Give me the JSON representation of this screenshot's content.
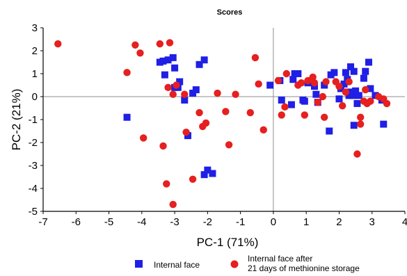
{
  "chart_data": {
    "type": "scatter",
    "title": "Scores",
    "xlabel": "PC-1 (71%)",
    "ylabel": "PC-2 (21%)",
    "xlim": [
      -7,
      4
    ],
    "ylim": [
      -5,
      3
    ],
    "xticks": [
      -7,
      -6,
      -5,
      -4,
      -3,
      -2,
      -1,
      0,
      1,
      2,
      3,
      4
    ],
    "yticks": [
      -5,
      -4,
      -3,
      -2,
      -1,
      0,
      1,
      2,
      3
    ],
    "zero_lines": true,
    "grid": false,
    "legend_position": "bottom",
    "series": [
      {
        "name": "Internal face",
        "marker": "square",
        "color": "#1f1fe6",
        "points": [
          [
            -4.45,
            -0.9
          ],
          [
            -3.45,
            1.5
          ],
          [
            -3.35,
            1.55
          ],
          [
            -3.3,
            0.95
          ],
          [
            -3.2,
            1.6
          ],
          [
            -3.05,
            1.7
          ],
          [
            -3.0,
            1.25
          ],
          [
            -3.0,
            0.4
          ],
          [
            -2.9,
            0.4
          ],
          [
            -2.85,
            0.65
          ],
          [
            -2.7,
            -0.15
          ],
          [
            -2.6,
            -1.7
          ],
          [
            -2.45,
            0.15
          ],
          [
            -2.35,
            0.3
          ],
          [
            -2.25,
            1.4
          ],
          [
            -2.1,
            1.6
          ],
          [
            -2.1,
            -3.4
          ],
          [
            -2.0,
            -3.2
          ],
          [
            -1.85,
            -3.35
          ],
          [
            -0.1,
            0.5
          ],
          [
            0.2,
            0.7
          ],
          [
            0.25,
            -0.15
          ],
          [
            0.55,
            -0.35
          ],
          [
            0.6,
            0.75
          ],
          [
            0.65,
            1.0
          ],
          [
            0.75,
            1.0
          ],
          [
            0.9,
            -0.15
          ],
          [
            0.95,
            -0.2
          ],
          [
            1.05,
            0.6
          ],
          [
            1.25,
            0.45
          ],
          [
            1.3,
            0.1
          ],
          [
            1.35,
            -0.25
          ],
          [
            1.55,
            0.5
          ],
          [
            1.7,
            -1.5
          ],
          [
            1.75,
            0.95
          ],
          [
            1.85,
            1.05
          ],
          [
            2.0,
            -0.1
          ],
          [
            2.05,
            0.35
          ],
          [
            2.15,
            0.55
          ],
          [
            2.2,
            1.05
          ],
          [
            2.25,
            0.75
          ],
          [
            2.3,
            0.2
          ],
          [
            2.3,
            0.05
          ],
          [
            2.35,
            1.3
          ],
          [
            2.4,
            0.05
          ],
          [
            2.45,
            1.1
          ],
          [
            2.45,
            -1.25
          ],
          [
            2.5,
            0.25
          ],
          [
            2.55,
            -0.3
          ],
          [
            2.6,
            0.05
          ],
          [
            2.75,
            0.8
          ],
          [
            2.8,
            1.1
          ],
          [
            2.9,
            1.5
          ],
          [
            2.95,
            0.35
          ],
          [
            3.1,
            0.05
          ],
          [
            3.3,
            -0.15
          ],
          [
            3.35,
            -1.2
          ]
        ]
      },
      {
        "name": "Internal face after 21 days of methionine storage",
        "legend_lines": [
          "Internal face after",
          "21 days of methionine storage"
        ],
        "marker": "circle",
        "color": "#e61f1f",
        "points": [
          [
            -6.55,
            2.3
          ],
          [
            -4.45,
            1.05
          ],
          [
            -4.2,
            2.25
          ],
          [
            -4.05,
            1.9
          ],
          [
            -3.95,
            -1.8
          ],
          [
            -3.45,
            2.3
          ],
          [
            -3.35,
            -2.15
          ],
          [
            -3.25,
            -3.8
          ],
          [
            -3.2,
            0.4
          ],
          [
            -3.15,
            2.35
          ],
          [
            -3.05,
            -4.7
          ],
          [
            -3.05,
            0.1
          ],
          [
            -2.95,
            0.5
          ],
          [
            -2.7,
            0.1
          ],
          [
            -2.65,
            -1.55
          ],
          [
            -2.45,
            -3.6
          ],
          [
            -2.25,
            -0.7
          ],
          [
            -2.15,
            -1.3
          ],
          [
            -2.05,
            -1.15
          ],
          [
            -1.7,
            0.15
          ],
          [
            -1.45,
            -0.65
          ],
          [
            -1.35,
            -2.1
          ],
          [
            -1.15,
            0.1
          ],
          [
            -0.7,
            -0.7
          ],
          [
            -0.55,
            1.7
          ],
          [
            -0.45,
            0.55
          ],
          [
            -0.3,
            -1.45
          ],
          [
            0.15,
            0.7
          ],
          [
            0.25,
            -0.8
          ],
          [
            0.35,
            -0.45
          ],
          [
            0.4,
            1.0
          ],
          [
            0.75,
            0.5
          ],
          [
            0.85,
            0.6
          ],
          [
            0.95,
            -0.8
          ],
          [
            1.05,
            0.7
          ],
          [
            1.2,
            0.85
          ],
          [
            1.25,
            0.6
          ],
          [
            1.35,
            -0.25
          ],
          [
            1.5,
            0.0
          ],
          [
            1.55,
            -0.9
          ],
          [
            1.6,
            0.65
          ],
          [
            1.9,
            0.65
          ],
          [
            2.0,
            0.45
          ],
          [
            2.1,
            -0.4
          ],
          [
            2.2,
            0.2
          ],
          [
            2.3,
            0.65
          ],
          [
            2.55,
            -2.5
          ],
          [
            2.65,
            -0.9
          ],
          [
            2.65,
            -1.2
          ],
          [
            2.75,
            -0.2
          ],
          [
            2.8,
            0.3
          ],
          [
            2.85,
            -0.3
          ],
          [
            2.95,
            -0.2
          ],
          [
            3.2,
            0.0
          ],
          [
            3.35,
            -0.1
          ],
          [
            3.45,
            -0.3
          ]
        ]
      }
    ]
  }
}
